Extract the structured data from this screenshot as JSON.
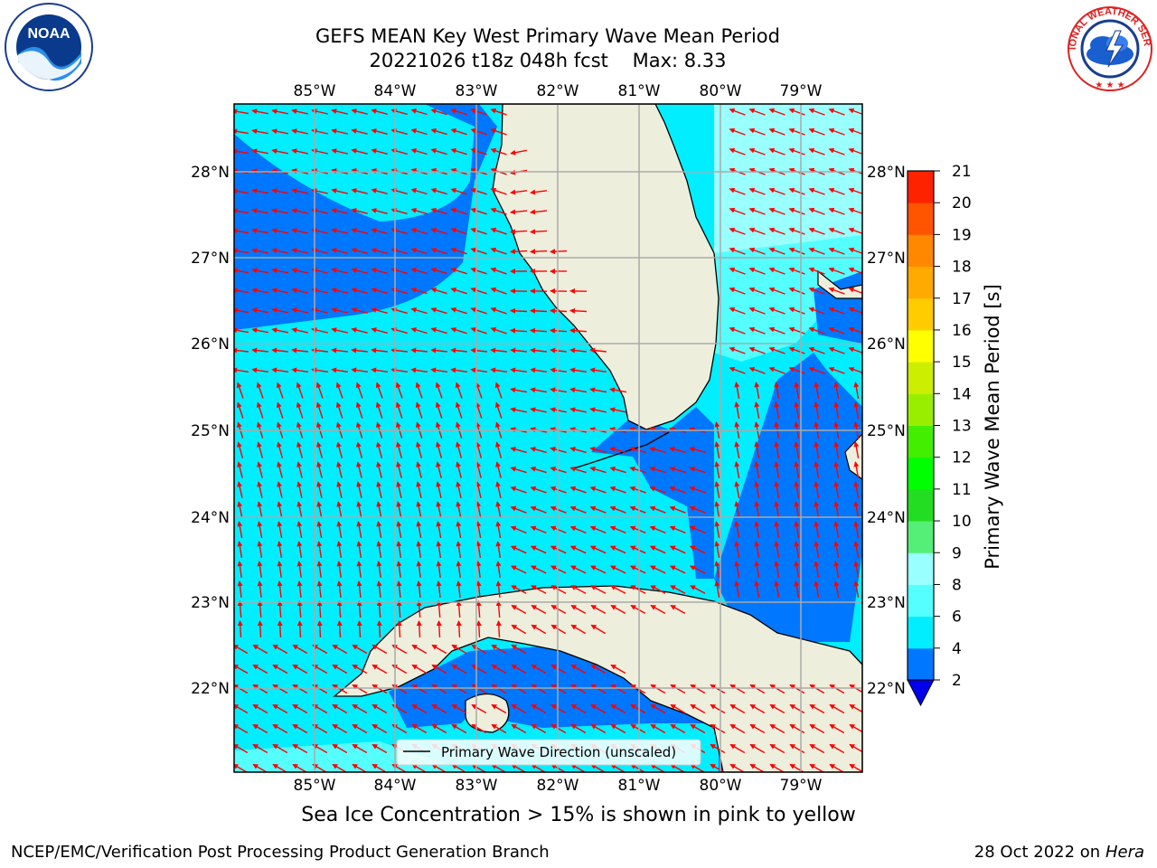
{
  "title": {
    "line1": "GEFS MEAN Key West Primary Wave Mean Period",
    "line2": "20221026 t18z 048h fcst    Max: 8.33"
  },
  "map": {
    "lon_labels": [
      "85°W",
      "84°W",
      "83°W",
      "82°W",
      "81°W",
      "80°W",
      "79°W"
    ],
    "lat_labels": [
      "28°N",
      "27°N",
      "26°N",
      "25°N",
      "24°N",
      "23°N",
      "22°N"
    ],
    "legend_label": "Primary Wave Direction (unscaled)",
    "arrow_color": "#ff0000"
  },
  "colorbar": {
    "label": "Primary Wave Mean Period [s]",
    "ticks": [
      "2",
      "4",
      "6",
      "8",
      "9",
      "10",
      "11",
      "12",
      "13",
      "14",
      "15",
      "16",
      "17",
      "18",
      "19",
      "20",
      "21"
    ],
    "colors": [
      "#0000ee",
      "#0077ff",
      "#00eeff",
      "#55ffff",
      "#99ffff",
      "#55ee77",
      "#22dd22",
      "#00ff00",
      "#44ee00",
      "#99ee00",
      "#ccee00",
      "#ffff00",
      "#ffcc00",
      "#ffaa00",
      "#ff8800",
      "#ff5500",
      "#ff2200",
      "#ff0000"
    ]
  },
  "ice_note": "Sea Ice Concentration > 15% is shown in pink to yellow",
  "footer": {
    "left": "NCEP/EMC/Verification Post Processing Product Generation Branch",
    "right_date": "28 Oct 2022 on ",
    "right_host": "Hera"
  },
  "logos": {
    "noaa_text": "NOAA",
    "nws_text": "NATIONAL WEATHER SERVICE"
  }
}
